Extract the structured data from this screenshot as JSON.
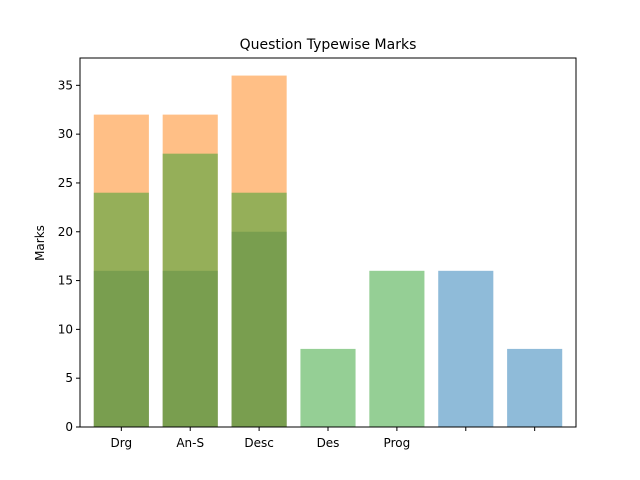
{
  "chart_data": {
    "type": "bar",
    "title": "Question Typewise Marks",
    "xlabel": "",
    "ylabel": "Marks",
    "ylim": [
      0,
      37.8
    ],
    "yticks": [
      0,
      5,
      10,
      15,
      20,
      25,
      30,
      35
    ],
    "grid": false,
    "legend": "none",
    "categories": [
      "Drg",
      "An-S",
      "Desc",
      "Des",
      "Prog",
      "",
      ""
    ],
    "series": [
      {
        "color": "#1f77b4",
        "values": [
          16,
          16,
          20,
          null,
          null,
          16,
          8
        ]
      },
      {
        "color": "#ff7f0e",
        "values": [
          32,
          32,
          36,
          null,
          null,
          null,
          null
        ]
      },
      {
        "color": "#2ca02c",
        "values": [
          24,
          28,
          24,
          8,
          16,
          null,
          null
        ]
      }
    ]
  }
}
